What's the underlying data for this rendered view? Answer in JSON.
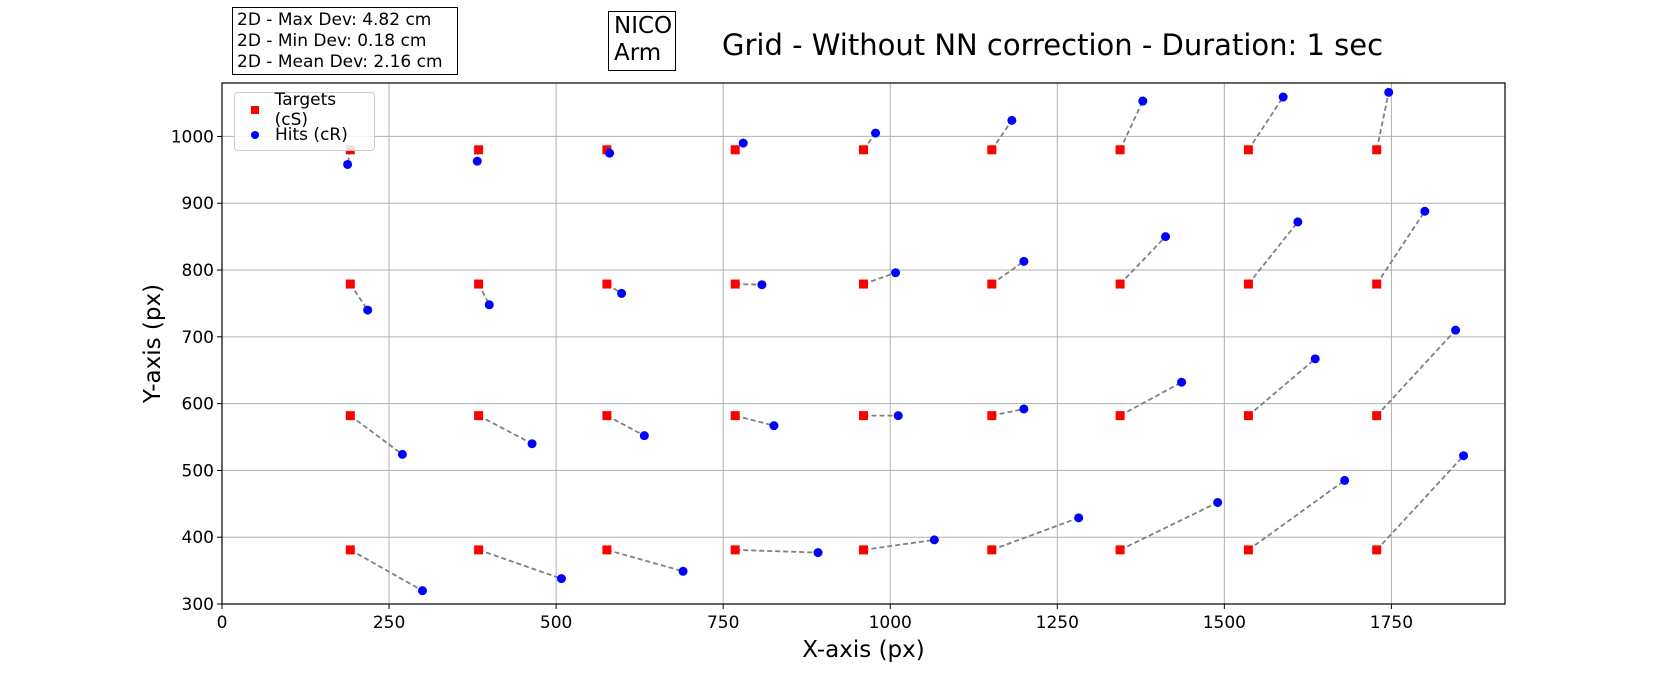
{
  "stats": {
    "max_dev": "2D - Max Dev: 4.82 cm",
    "min_dev": "2D - Min Dev: 0.18 cm",
    "mean_dev": "2D - Mean Dev: 2.16 cm"
  },
  "device_label": [
    "NICO",
    "Arm"
  ],
  "colors": {
    "target": "#ff0000",
    "hit": "#0000ff",
    "link": "#808080",
    "grid": "#b0b0b0"
  },
  "chart_data": {
    "type": "scatter",
    "title": "Grid - Without NN correction - Duration: 1 sec",
    "xlabel": "X-axis (px)",
    "ylabel": "Y-axis (px)",
    "xlim": [
      0,
      1920
    ],
    "ylim": [
      300,
      1080
    ],
    "xticks": [
      0,
      250,
      500,
      750,
      1000,
      1250,
      1500,
      1750
    ],
    "yticks": [
      300,
      400,
      500,
      600,
      700,
      800,
      900,
      1000
    ],
    "grid": true,
    "legend_position": "top-left",
    "series": [
      {
        "name": "Targets (cS)",
        "marker": "square",
        "color": "#ff0000"
      },
      {
        "name": "Hits (cR)",
        "marker": "circle",
        "color": "#0000ff"
      }
    ],
    "pairs": [
      {
        "target": [
          192,
          980
        ],
        "hit": [
          188,
          958
        ]
      },
      {
        "target": [
          384,
          980
        ],
        "hit": [
          382,
          963
        ]
      },
      {
        "target": [
          576,
          980
        ],
        "hit": [
          580,
          975
        ]
      },
      {
        "target": [
          768,
          980
        ],
        "hit": [
          780,
          990
        ]
      },
      {
        "target": [
          960,
          980
        ],
        "hit": [
          978,
          1005
        ]
      },
      {
        "target": [
          1152,
          980
        ],
        "hit": [
          1182,
          1024
        ]
      },
      {
        "target": [
          1344,
          980
        ],
        "hit": [
          1378,
          1053
        ]
      },
      {
        "target": [
          1536,
          980
        ],
        "hit": [
          1588,
          1059
        ]
      },
      {
        "target": [
          1728,
          980
        ],
        "hit": [
          1746,
          1066
        ]
      },
      {
        "target": [
          192,
          779
        ],
        "hit": [
          218,
          740
        ]
      },
      {
        "target": [
          384,
          779
        ],
        "hit": [
          400,
          748
        ]
      },
      {
        "target": [
          576,
          779
        ],
        "hit": [
          598,
          765
        ]
      },
      {
        "target": [
          768,
          779
        ],
        "hit": [
          808,
          778
        ]
      },
      {
        "target": [
          960,
          779
        ],
        "hit": [
          1008,
          796
        ]
      },
      {
        "target": [
          1152,
          779
        ],
        "hit": [
          1200,
          813
        ]
      },
      {
        "target": [
          1344,
          779
        ],
        "hit": [
          1412,
          850
        ]
      },
      {
        "target": [
          1536,
          779
        ],
        "hit": [
          1610,
          872
        ]
      },
      {
        "target": [
          1728,
          779
        ],
        "hit": [
          1800,
          888
        ]
      },
      {
        "target": [
          192,
          582
        ],
        "hit": [
          270,
          524
        ]
      },
      {
        "target": [
          384,
          582
        ],
        "hit": [
          464,
          540
        ]
      },
      {
        "target": [
          576,
          582
        ],
        "hit": [
          632,
          552
        ]
      },
      {
        "target": [
          768,
          582
        ],
        "hit": [
          826,
          567
        ]
      },
      {
        "target": [
          960,
          582
        ],
        "hit": [
          1012,
          582
        ]
      },
      {
        "target": [
          1152,
          582
        ],
        "hit": [
          1200,
          592
        ]
      },
      {
        "target": [
          1344,
          582
        ],
        "hit": [
          1436,
          632
        ]
      },
      {
        "target": [
          1536,
          582
        ],
        "hit": [
          1636,
          667
        ]
      },
      {
        "target": [
          1728,
          582
        ],
        "hit": [
          1846,
          710
        ]
      },
      {
        "target": [
          192,
          381
        ],
        "hit": [
          300,
          320
        ]
      },
      {
        "target": [
          384,
          381
        ],
        "hit": [
          508,
          338
        ]
      },
      {
        "target": [
          576,
          381
        ],
        "hit": [
          690,
          349
        ]
      },
      {
        "target": [
          768,
          381
        ],
        "hit": [
          892,
          377
        ]
      },
      {
        "target": [
          960,
          381
        ],
        "hit": [
          1066,
          396
        ]
      },
      {
        "target": [
          1152,
          381
        ],
        "hit": [
          1282,
          429
        ]
      },
      {
        "target": [
          1344,
          381
        ],
        "hit": [
          1490,
          452
        ]
      },
      {
        "target": [
          1536,
          381
        ],
        "hit": [
          1680,
          485
        ]
      },
      {
        "target": [
          1728,
          381
        ],
        "hit": [
          1858,
          522
        ]
      }
    ]
  }
}
